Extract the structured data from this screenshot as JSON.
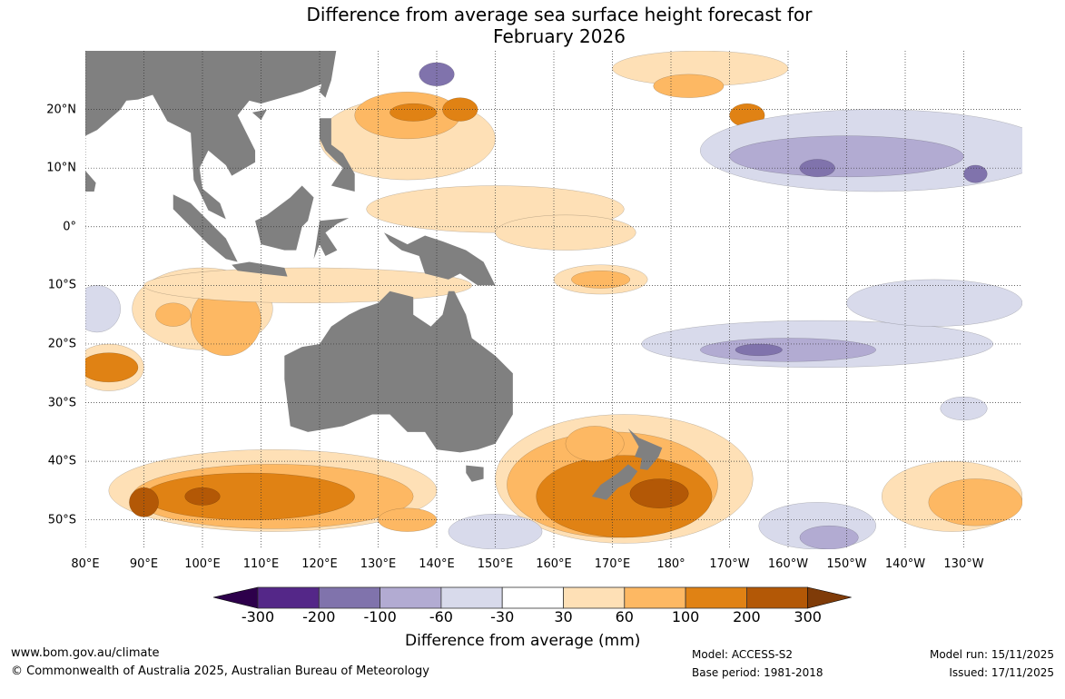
{
  "title_line1": "Difference from average sea surface height forecast for",
  "title_line2": "February 2026",
  "axes": {
    "lon_labels": [
      "80°E",
      "90°E",
      "100°E",
      "110°E",
      "120°E",
      "130°E",
      "140°E",
      "150°E",
      "160°E",
      "170°E",
      "180°",
      "170°W",
      "160°W",
      "150°W",
      "140°W",
      "130°W"
    ],
    "lat_labels": [
      "20°N",
      "10°N",
      "0°",
      "10°S",
      "20°S",
      "30°S",
      "40°S",
      "50°S"
    ],
    "lon_range": [
      80,
      240
    ],
    "lat_range": [
      -55,
      30
    ]
  },
  "colorbar": {
    "ticks": [
      "-300",
      "-200",
      "-100",
      "-60",
      "-30",
      "30",
      "60",
      "100",
      "200",
      "300"
    ],
    "colors": [
      "#2d004b",
      "#542788",
      "#8073ac",
      "#b2abd2",
      "#d8daeb",
      "#ffffff",
      "#fee0b6",
      "#fdb863",
      "#e08214",
      "#b35806",
      "#7f3b08"
    ],
    "label": "Difference from average (mm)"
  },
  "land_color": "#808080",
  "footer": {
    "url": "www.bom.gov.au/climate",
    "copyright": "© Commonwealth of Australia 2025, Australian Bureau of Meteorology",
    "model": "Model: ACCESS-S2",
    "base_period": "Base period: 1981-2018",
    "model_run": "Model run: 15/11/2025",
    "issued": "Issued: 17/11/2025"
  }
}
